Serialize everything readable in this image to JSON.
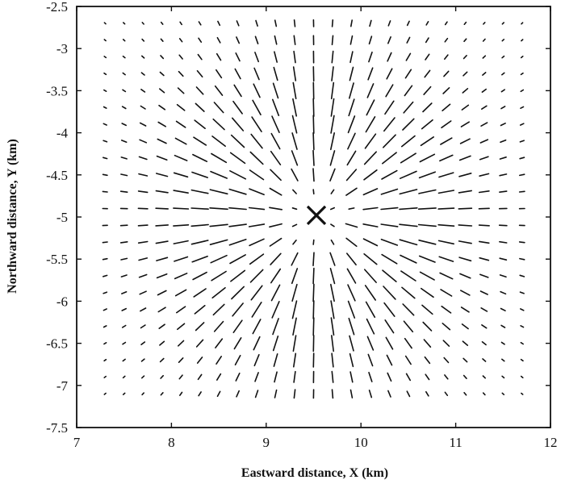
{
  "chart_data": {
    "type": "quiver",
    "xlabel": "Eastward distance, X (km)",
    "ylabel": "Northward distance, Y (km)",
    "xlim": [
      7,
      12
    ],
    "ylim": [
      -7.5,
      -2.5
    ],
    "x_ticks": [
      "7",
      "8",
      "9",
      "10",
      "11",
      "12"
    ],
    "y_ticks": [
      "-2.5",
      "-3",
      "-3.5",
      "-4",
      "-4.5",
      "-5",
      "-5.5",
      "-6",
      "-6.5",
      "-7",
      "-7.5"
    ],
    "field": {
      "pattern": "radial segments centered on marker",
      "center": [
        9.53,
        -4.98
      ],
      "grid_x": [
        7.3,
        7.5,
        7.7,
        7.9,
        8.1,
        8.3,
        8.5,
        8.7,
        8.9,
        9.1,
        9.3,
        9.5,
        9.7,
        9.9,
        10.1,
        10.3,
        10.5,
        10.7,
        10.9,
        11.1,
        11.3,
        11.5,
        11.7
      ],
      "grid_y": [
        -2.7,
        -2.9,
        -3.1,
        -3.3,
        -3.5,
        -3.7,
        -3.9,
        -4.1,
        -4.3,
        -4.5,
        -4.7,
        -4.9,
        -5.1,
        -5.3,
        -5.5,
        -5.7,
        -5.9,
        -6.1,
        -6.3,
        -6.5,
        -6.7,
        -6.9,
        -7.1
      ]
    },
    "marker": {
      "symbol": "X",
      "x": 9.53,
      "y": -4.98
    },
    "grid": false
  }
}
